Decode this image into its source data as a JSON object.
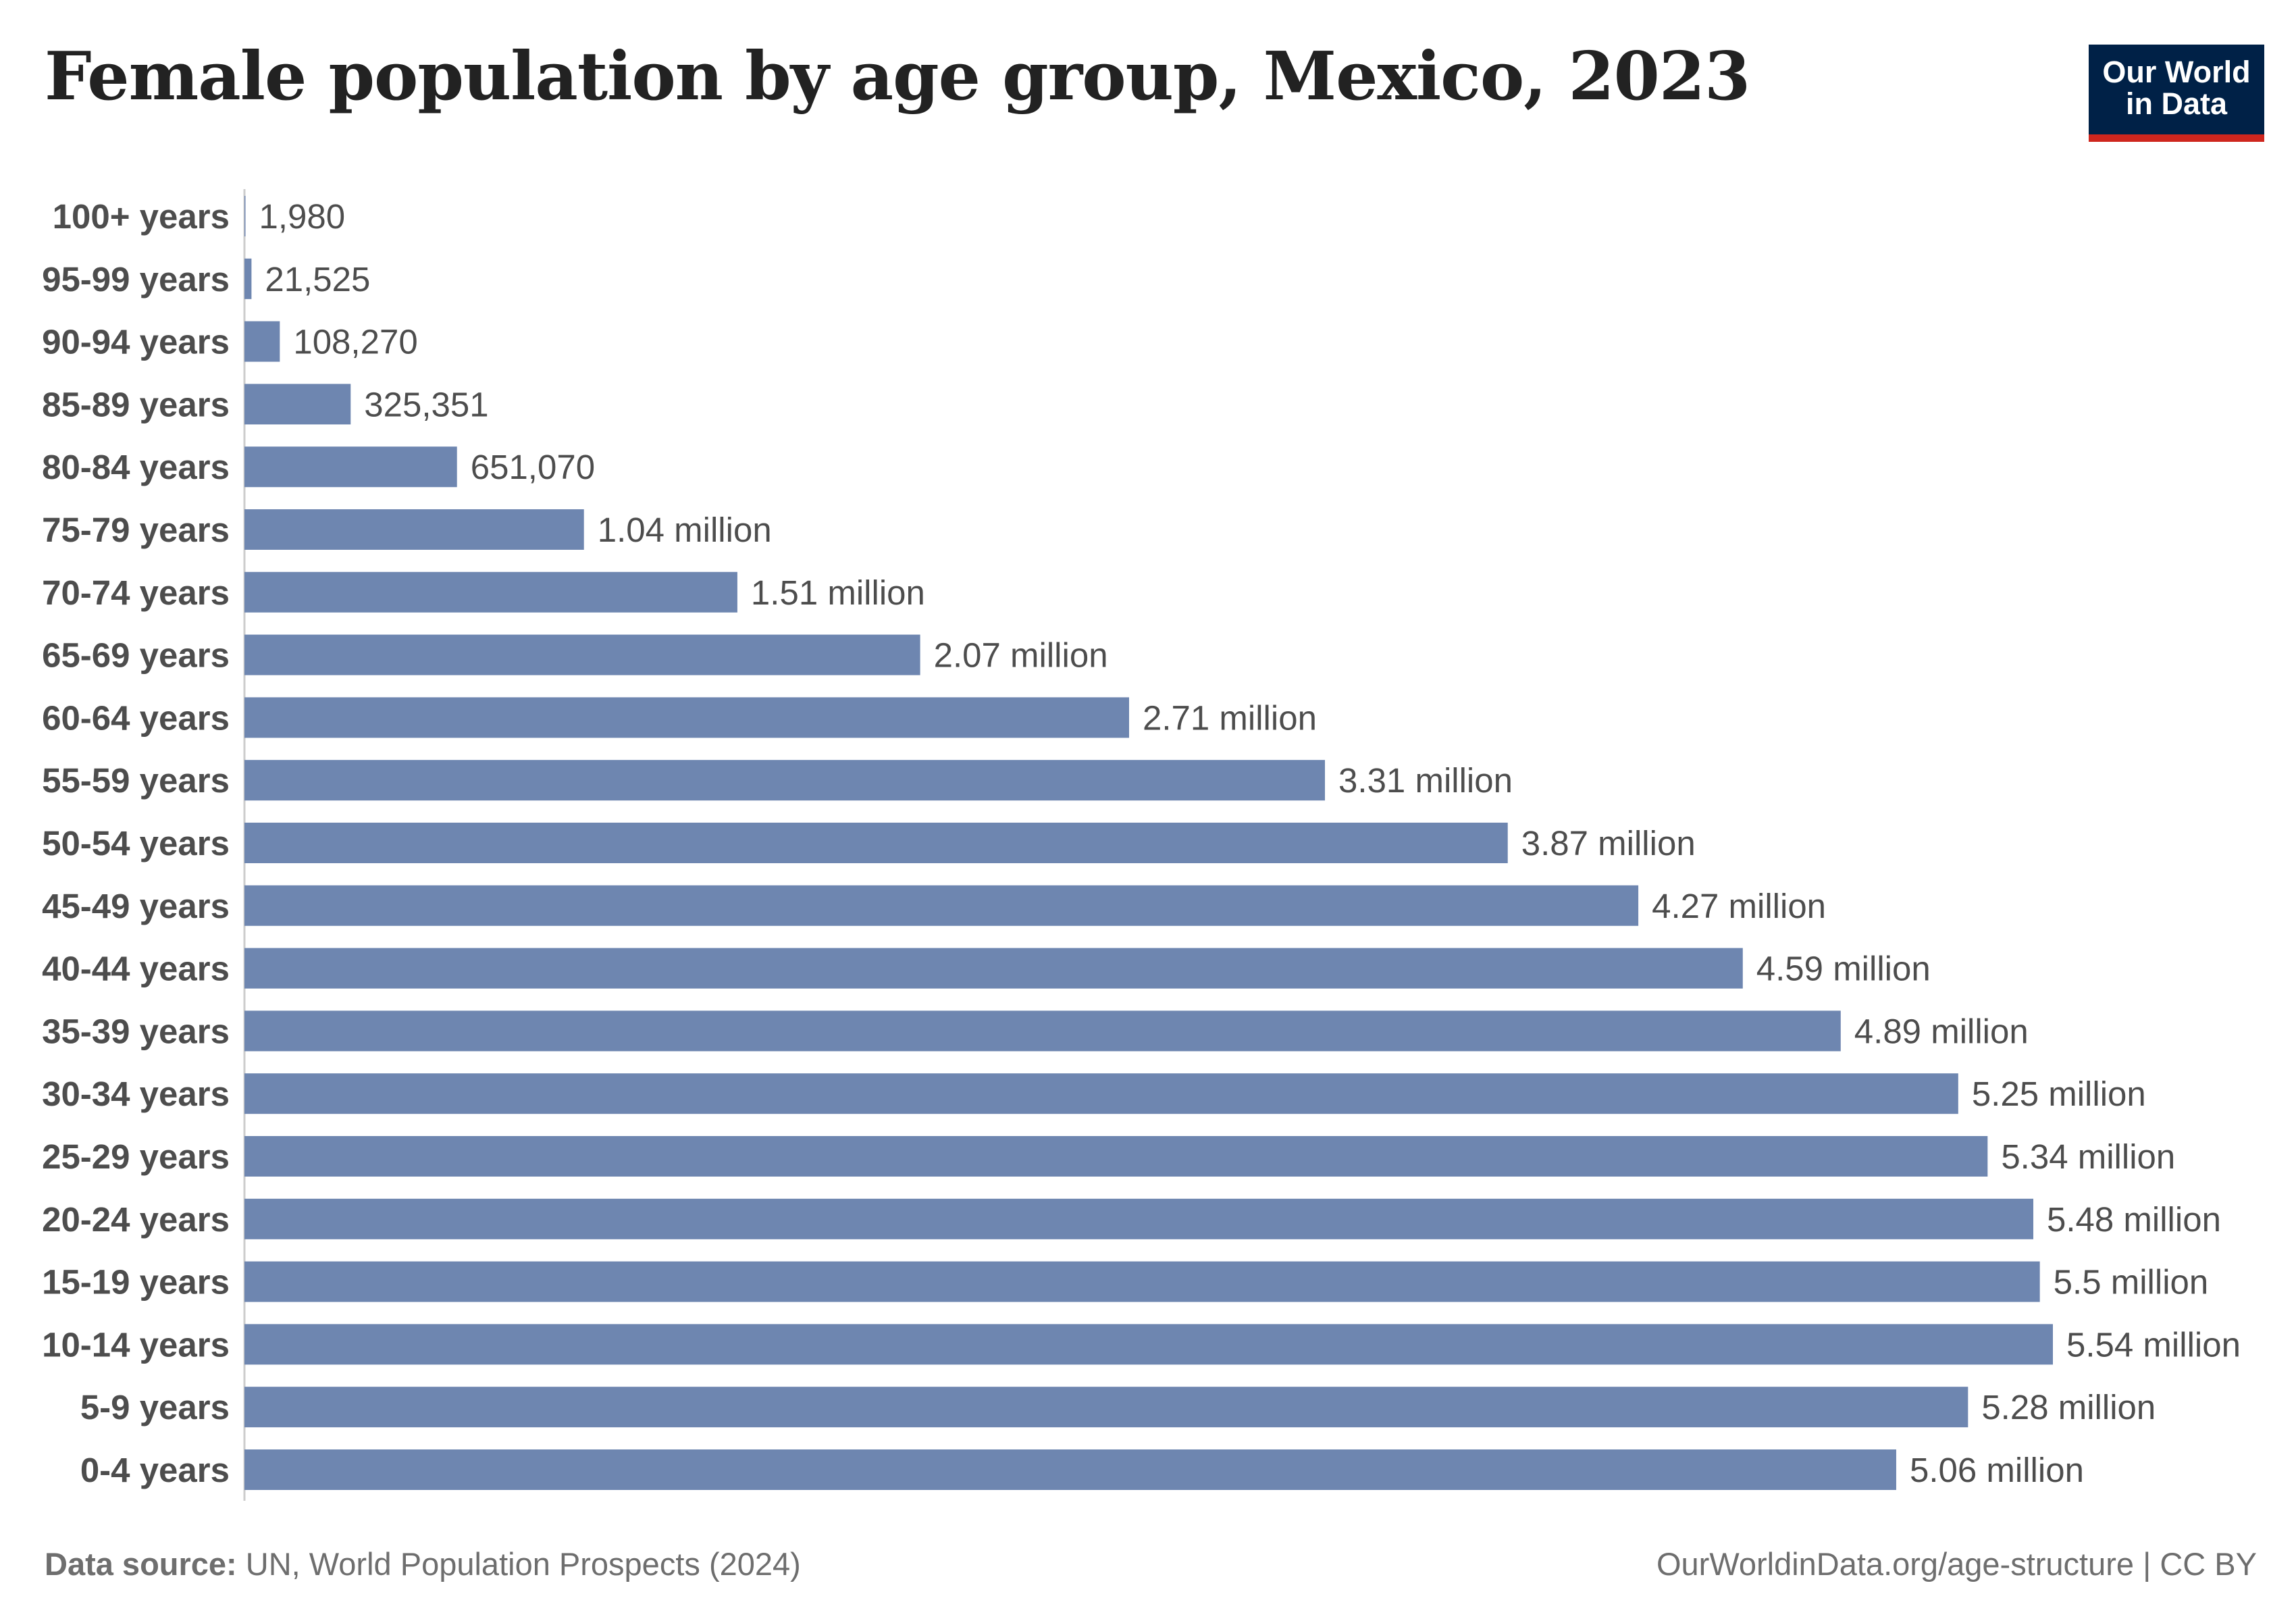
{
  "title": "Female population by age group, Mexico, 2023",
  "logo": {
    "line1": "Our World",
    "line2": "in Data"
  },
  "footer": {
    "source_label": "Data source:",
    "source_text": "UN, World Population Prospects (2024)",
    "url_text": "OurWorldinData.org/age-structure | CC BY"
  },
  "colors": {
    "bar": "#6e86b0",
    "logo_bg": "#002147",
    "logo_accent": "#ce261e"
  },
  "chart_data": {
    "type": "bar",
    "orientation": "horizontal",
    "title": "Female population by age group, Mexico, 2023",
    "categories": [
      "100+ years",
      "95-99 years",
      "90-94 years",
      "85-89 years",
      "80-84 years",
      "75-79 years",
      "70-74 years",
      "65-69 years",
      "60-64 years",
      "55-59 years",
      "50-54 years",
      "45-49 years",
      "40-44 years",
      "35-39 years",
      "30-34 years",
      "25-29 years",
      "20-24 years",
      "15-19 years",
      "10-14 years",
      "5-9 years",
      "0-4 years"
    ],
    "values": [
      1980,
      21525,
      108270,
      325351,
      651070,
      1040000,
      1510000,
      2070000,
      2710000,
      3310000,
      3870000,
      4270000,
      4590000,
      4890000,
      5250000,
      5340000,
      5480000,
      5500000,
      5540000,
      5280000,
      5060000
    ],
    "value_labels": [
      "1,980",
      "21,525",
      "108,270",
      "325,351",
      "651,070",
      "1.04 million",
      "1.51 million",
      "2.07 million",
      "2.71 million",
      "3.31 million",
      "3.87 million",
      "4.27 million",
      "4.59 million",
      "4.89 million",
      "5.25 million",
      "5.34 million",
      "5.48 million",
      "5.5 million",
      "5.54 million",
      "5.28 million",
      "5.06 million"
    ],
    "xlabel": "",
    "ylabel": "",
    "grid": false,
    "legend": "none"
  }
}
